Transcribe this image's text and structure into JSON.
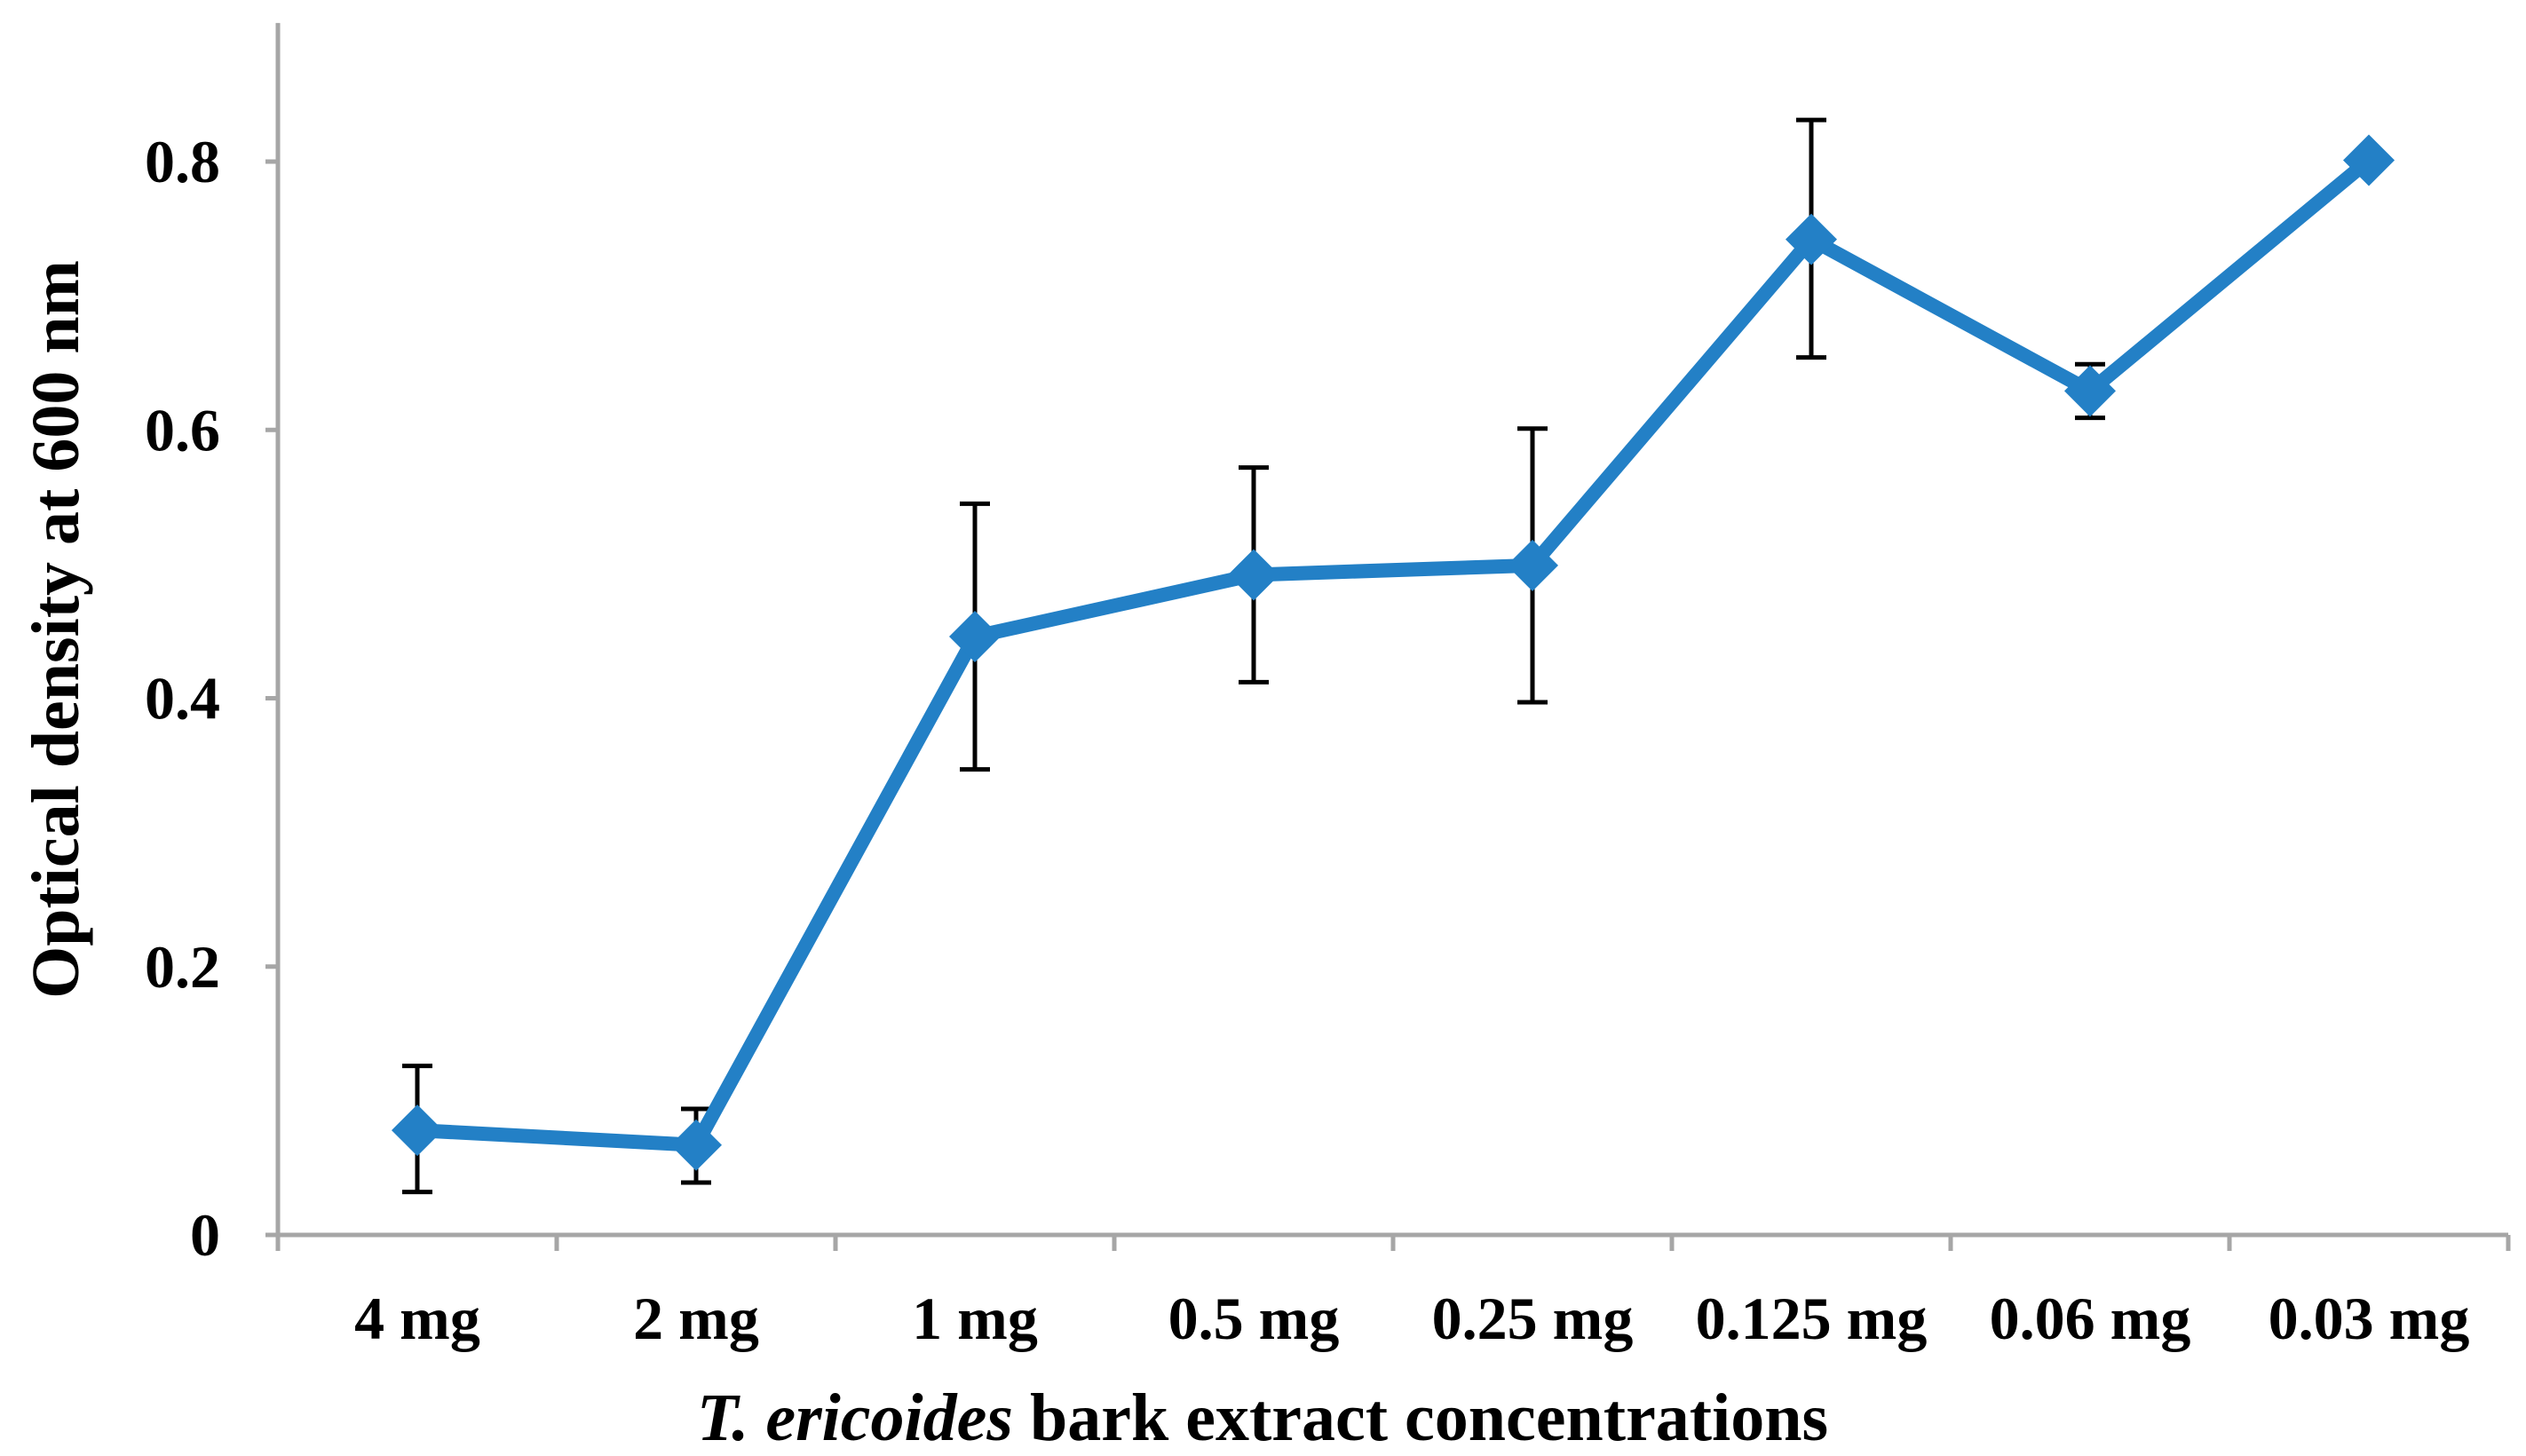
{
  "chart_data": {
    "type": "line",
    "title": "",
    "xlabel_parts": {
      "italic": "T. ericoides",
      "rest": " bark extract concentrations"
    },
    "ylabel": "Optical density at 600 nm",
    "categories": [
      "4 mg",
      "2 mg",
      "1 mg",
      "0.5 mg",
      "0.25 mg",
      "0.125 mg",
      "0.06 mg",
      "0.03 mg"
    ],
    "series": [
      {
        "name": "Optical density",
        "values": [
          0.078,
          0.067,
          0.446,
          0.492,
          0.499,
          0.742,
          0.629,
          0.801
        ],
        "error_upper": [
          0.126,
          0.094,
          0.545,
          0.572,
          0.601,
          0.831,
          0.649,
          0.801
        ],
        "error_lower": [
          0.032,
          0.039,
          0.347,
          0.412,
          0.397,
          0.654,
          0.609,
          0.801
        ],
        "color": "#2380c6"
      }
    ],
    "yticks": [
      "0",
      "0.2",
      "0.4",
      "0.6",
      "0.8"
    ],
    "ytick_values": [
      0,
      0.2,
      0.4,
      0.6,
      0.8
    ],
    "ylim": [
      0,
      0.9
    ],
    "grid": false,
    "legend": "none"
  },
  "colors": {
    "axis": "#a6a6a6",
    "error_bar": "#000000",
    "series": "#2380c6"
  }
}
